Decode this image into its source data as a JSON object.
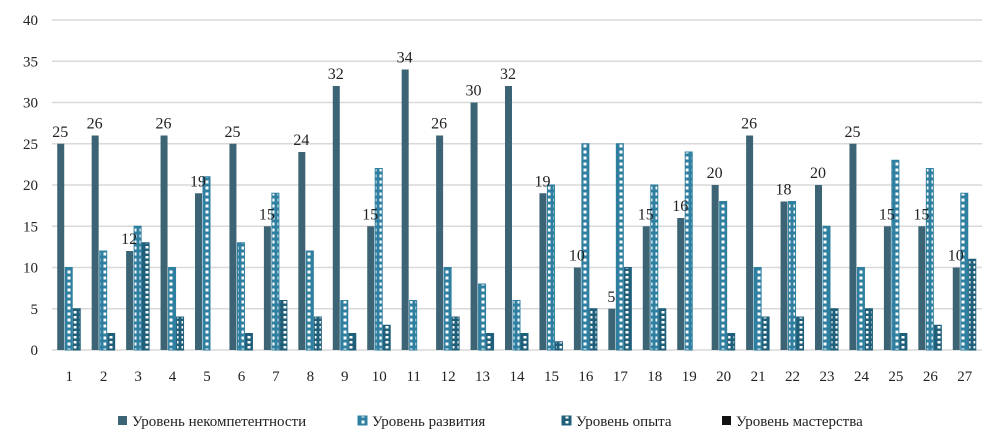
{
  "chart_data": {
    "type": "bar",
    "title": "",
    "xlabel": "",
    "ylabel": "",
    "ylim": [
      0,
      40
    ],
    "yticks": [
      0,
      5,
      10,
      15,
      20,
      25,
      30,
      35,
      40
    ],
    "grid": true,
    "legend_position": "bottom",
    "categories": [
      "1",
      "2",
      "3",
      "4",
      "5",
      "6",
      "7",
      "8",
      "9",
      "10",
      "11",
      "12",
      "13",
      "14",
      "15",
      "16",
      "17",
      "18",
      "19",
      "20",
      "21",
      "22",
      "23",
      "24",
      "25",
      "26",
      "27"
    ],
    "series": [
      {
        "name": "Уровень некомпетентности",
        "color": "#3d6474",
        "pattern": "solid",
        "show_labels": true,
        "values": [
          25,
          26,
          12,
          26,
          19,
          25,
          15,
          24,
          32,
          15,
          34,
          26,
          30,
          32,
          19,
          10,
          5,
          15,
          16,
          20,
          26,
          18,
          20,
          25,
          15,
          15,
          10
        ]
      },
      {
        "name": "Уровень развития",
        "color": "#2f7fa0",
        "pattern": "dashed",
        "values": [
          10,
          12,
          15,
          10,
          21,
          13,
          19,
          12,
          6,
          22,
          6,
          10,
          8,
          6,
          20,
          25,
          25,
          20,
          24,
          18,
          10,
          18,
          15,
          10,
          23,
          22,
          19
        ]
      },
      {
        "name": "Уровень опыта",
        "color": "#1f5f7a",
        "pattern": "brick",
        "values": [
          5,
          2,
          13,
          4,
          0,
          2,
          6,
          4,
          2,
          3,
          0,
          4,
          2,
          2,
          1,
          5,
          10,
          5,
          0,
          2,
          4,
          4,
          5,
          5,
          2,
          3,
          11
        ]
      },
      {
        "name": "Уровень мастерства",
        "color": "#111111",
        "pattern": "solid",
        "values": [
          0,
          0,
          0,
          0,
          0,
          0,
          0,
          0,
          0,
          0,
          0,
          0,
          0,
          0,
          0,
          0,
          0,
          0,
          0,
          0,
          0,
          0,
          0,
          0,
          0,
          0,
          0
        ]
      }
    ]
  }
}
